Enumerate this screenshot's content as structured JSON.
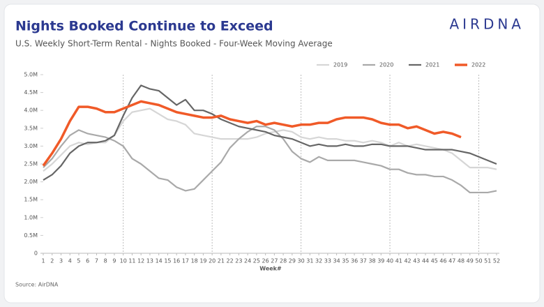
{
  "chart_data": {
    "type": "line",
    "title": "Nights Booked Continue to Exceed",
    "subtitle": "U.S. Weekly Short-Term Rental - Nights Booked - Four-Week Moving Average",
    "logo": "AIRDNA",
    "source": "Source: AirDNA",
    "x_label": "Week#",
    "x": [
      1,
      2,
      3,
      4,
      5,
      6,
      7,
      8,
      9,
      10,
      11,
      12,
      13,
      14,
      15,
      16,
      17,
      18,
      19,
      20,
      21,
      22,
      23,
      24,
      25,
      26,
      27,
      28,
      29,
      30,
      31,
      32,
      33,
      34,
      35,
      36,
      37,
      38,
      39,
      40,
      41,
      42,
      43,
      44,
      45,
      46,
      47,
      48,
      49,
      50,
      51,
      52
    ],
    "xlim": [
      1,
      52
    ],
    "xticks": [
      1,
      2,
      3,
      4,
      5,
      6,
      7,
      8,
      9,
      10,
      11,
      12,
      13,
      14,
      15,
      16,
      17,
      18,
      19,
      20,
      21,
      22,
      23,
      24,
      25,
      26,
      27,
      28,
      29,
      30,
      31,
      32,
      33,
      34,
      35,
      36,
      37,
      38,
      39,
      40,
      41,
      42,
      43,
      44,
      45,
      46,
      47,
      48,
      49,
      50,
      51,
      52
    ],
    "xgrid": [
      10,
      20,
      30,
      40,
      50
    ],
    "ylim": [
      0,
      5
    ],
    "yticks": [
      0,
      {
        "value": 0.5,
        "label": "0.5M"
      },
      {
        "value": 1,
        "label": "1.0M"
      },
      {
        "value": 1.5,
        "label": "1.5M"
      },
      {
        "value": 2,
        "label": "2.0M"
      },
      {
        "value": 2.5,
        "label": "2.5M"
      },
      {
        "value": 3,
        "label": "3.0M"
      },
      {
        "value": 3.5,
        "label": "3.5M"
      },
      {
        "value": 4,
        "label": "4.0M"
      },
      {
        "value": 4.5,
        "label": "4.5M"
      },
      {
        "value": 5,
        "label": "5.0M"
      }
    ],
    "legend": "top-right",
    "series": [
      {
        "name": "2019",
        "color": "#d6d6d6",
        "values": [
          2.3,
          2.5,
          2.75,
          3.0,
          3.1,
          3.05,
          3.1,
          3.1,
          3.3,
          3.7,
          3.95,
          4.0,
          4.05,
          3.9,
          3.75,
          3.7,
          3.6,
          3.35,
          3.3,
          3.25,
          3.2,
          3.2,
          3.2,
          3.2,
          3.25,
          3.35,
          3.4,
          3.45,
          3.4,
          3.25,
          3.2,
          3.25,
          3.2,
          3.2,
          3.15,
          3.15,
          3.1,
          3.15,
          3.1,
          3.0,
          3.1,
          3.0,
          3.05,
          3.0,
          2.95,
          2.9,
          2.8,
          2.6,
          2.4,
          2.4,
          2.4,
          2.35
        ]
      },
      {
        "name": "2020",
        "color": "#a9a9a9",
        "values": [
          2.4,
          2.65,
          3.0,
          3.3,
          3.45,
          3.35,
          3.3,
          3.25,
          3.15,
          3.0,
          2.65,
          2.5,
          2.3,
          2.1,
          2.05,
          1.85,
          1.75,
          1.8,
          2.05,
          2.3,
          2.55,
          2.95,
          3.2,
          3.4,
          3.55,
          3.55,
          3.45,
          3.2,
          2.85,
          2.65,
          2.55,
          2.7,
          2.6,
          2.6,
          2.6,
          2.6,
          2.55,
          2.5,
          2.45,
          2.35,
          2.35,
          2.25,
          2.2,
          2.2,
          2.15,
          2.15,
          2.05,
          1.9,
          1.7,
          1.7,
          1.7,
          1.75
        ]
      },
      {
        "name": "2021",
        "color": "#666666",
        "values": [
          2.05,
          2.2,
          2.45,
          2.8,
          3.0,
          3.1,
          3.1,
          3.15,
          3.3,
          3.85,
          4.35,
          4.7,
          4.6,
          4.55,
          4.35,
          4.15,
          4.3,
          4.0,
          4.0,
          3.9,
          3.75,
          3.65,
          3.55,
          3.5,
          3.45,
          3.4,
          3.3,
          3.25,
          3.2,
          3.1,
          3.0,
          3.05,
          3.0,
          3.0,
          3.05,
          3.0,
          3.0,
          3.05,
          3.05,
          3.0,
          3.0,
          3.0,
          2.95,
          2.9,
          2.9,
          2.9,
          2.9,
          2.85,
          2.8,
          2.7,
          2.6,
          2.5
        ]
      },
      {
        "name": "2022",
        "color": "#f05a28",
        "values": [
          2.45,
          2.8,
          3.2,
          3.7,
          4.1,
          4.1,
          4.05,
          3.95,
          3.95,
          4.05,
          4.15,
          4.25,
          4.2,
          4.15,
          4.05,
          3.95,
          3.9,
          3.85,
          3.8,
          3.8,
          3.85,
          3.75,
          3.7,
          3.65,
          3.7,
          3.6,
          3.65,
          3.6,
          3.55,
          3.6,
          3.6,
          3.65,
          3.65,
          3.75,
          3.8,
          3.8,
          3.8,
          3.75,
          3.65,
          3.6,
          3.6,
          3.5,
          3.55,
          3.45,
          3.35,
          3.4,
          3.35,
          3.25,
          null,
          null,
          null,
          null
        ]
      }
    ]
  }
}
